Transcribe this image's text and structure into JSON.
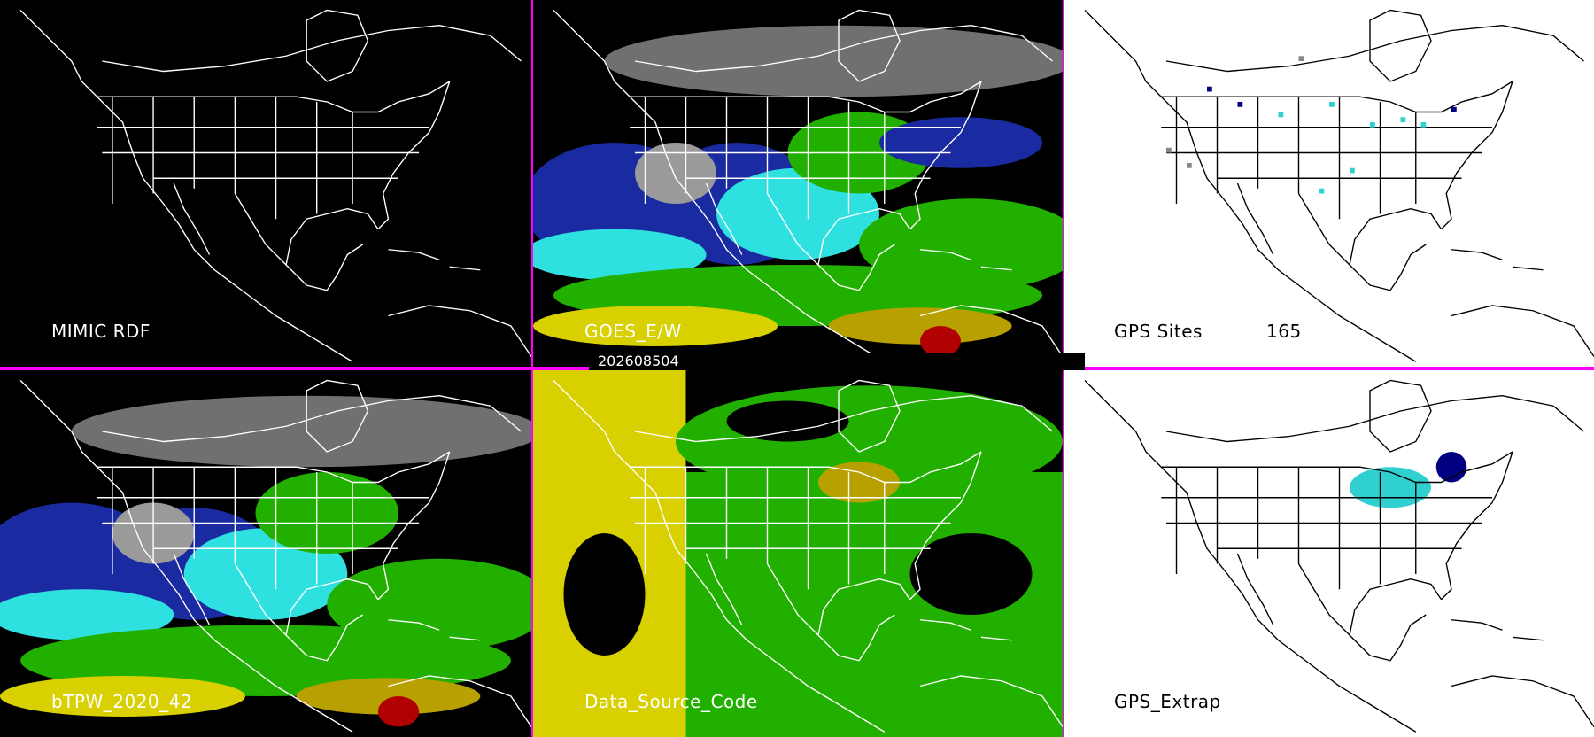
{
  "panels": {
    "mimic_rdf": {
      "label": "MIMIC RDF"
    },
    "goes_ew": {
      "label": "GOES_E/W"
    },
    "gps_sites": {
      "label": "GPS Sites",
      "count": "165"
    },
    "btpw": {
      "label": "bTPW_2020_42"
    },
    "data_source": {
      "label": "Data_Source_Code"
    },
    "gps_extrap": {
      "label": "GPS_Extrap"
    }
  },
  "timestamp": "202608504",
  "colors": {
    "divider": "#ff00ff",
    "map_lines_dark": "#ffffff",
    "map_lines_light": "#000000",
    "tpw_low": "#1a2aa0",
    "tpw_mid": "#2fe0e0",
    "tpw_green": "#22b000",
    "tpw_yellow": "#d8d000",
    "tpw_red": "#b00000",
    "tpw_dry": "#9a9a9a",
    "gps_site_navy": "#000080",
    "gps_site_cyan": "#30d0d0",
    "gps_site_gray": "#888888"
  }
}
